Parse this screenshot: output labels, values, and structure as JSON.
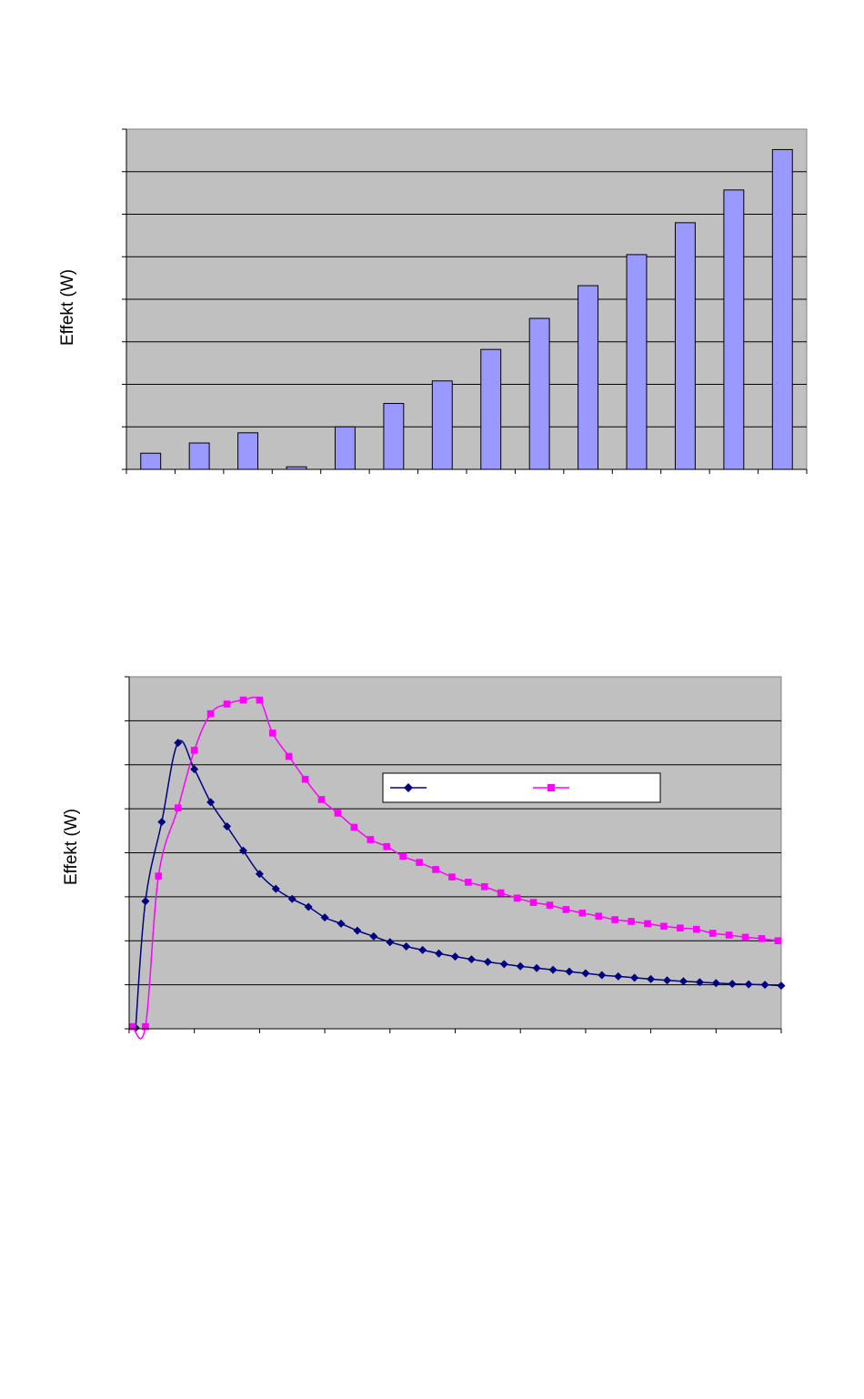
{
  "chart_data": [
    {
      "type": "bar",
      "ylabel": "Effekt (W)",
      "ylim": [
        0,
        8
      ],
      "grid": true,
      "bar_color": "#9999ff",
      "plot_bg": "#c0c0c0",
      "values": [
        0.38,
        0.62,
        0.86,
        0.06,
        1.0,
        1.55,
        2.08,
        2.82,
        3.55,
        4.32,
        5.05,
        5.8,
        6.57,
        7.52
      ]
    },
    {
      "type": "line",
      "ylabel": "Effekt (W)",
      "ylim": [
        0,
        8
      ],
      "xlim": [
        0,
        10
      ],
      "grid": true,
      "legend": "center-right",
      "plot_bg": "#c0c0c0",
      "series": [
        {
          "color": "#000080",
          "marker": "diamond",
          "x": [
            0.1,
            0.25,
            0.5,
            0.75,
            1.0,
            1.25,
            1.5,
            1.75,
            2.0,
            2.25,
            2.5,
            2.75,
            3.0,
            3.25,
            3.5,
            3.75,
            4.0,
            4.25,
            4.5,
            4.75,
            5.0,
            5.25,
            5.5,
            5.75,
            6.0,
            6.25,
            6.5,
            6.75,
            7.0,
            7.25,
            7.5,
            7.75,
            8.0,
            8.25,
            8.5,
            8.75,
            9.0,
            9.25,
            9.5,
            9.75,
            10.0
          ],
          "y": [
            0.02,
            2.9,
            4.7,
            6.5,
            5.9,
            5.15,
            4.6,
            4.05,
            3.52,
            3.18,
            2.95,
            2.77,
            2.53,
            2.39,
            2.23,
            2.1,
            1.97,
            1.87,
            1.79,
            1.71,
            1.64,
            1.58,
            1.52,
            1.47,
            1.42,
            1.38,
            1.34,
            1.3,
            1.26,
            1.22,
            1.19,
            1.16,
            1.13,
            1.1,
            1.08,
            1.06,
            1.04,
            1.02,
            1.01,
            1.0,
            0.98
          ]
        },
        {
          "color": "#ff00ff",
          "marker": "square",
          "x": [
            0.05,
            0.25,
            0.45,
            0.75,
            1.0,
            1.25,
            1.5,
            1.75,
            2.0,
            2.2,
            2.45,
            2.7,
            2.95,
            3.2,
            3.45,
            3.7,
            3.95,
            4.2,
            4.45,
            4.7,
            4.95,
            5.2,
            5.45,
            5.7,
            5.95,
            6.2,
            6.45,
            6.7,
            6.95,
            7.2,
            7.45,
            7.7,
            7.95,
            8.2,
            8.45,
            8.7,
            8.95,
            9.2,
            9.45,
            9.7,
            9.95
          ],
          "y": [
            0.05,
            0.05,
            3.47,
            5.02,
            6.33,
            7.16,
            7.38,
            7.47,
            7.47,
            6.72,
            6.19,
            5.67,
            5.21,
            4.9,
            4.58,
            4.3,
            4.14,
            3.92,
            3.78,
            3.62,
            3.45,
            3.33,
            3.23,
            3.09,
            2.97,
            2.87,
            2.81,
            2.71,
            2.63,
            2.56,
            2.48,
            2.44,
            2.39,
            2.33,
            2.29,
            2.26,
            2.17,
            2.13,
            2.08,
            2.05,
            2.0
          ]
        }
      ]
    }
  ]
}
